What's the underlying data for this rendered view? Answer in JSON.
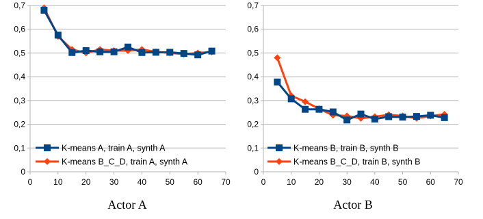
{
  "colors": {
    "kmeans": "#004586",
    "kmeans_bcd": "#ff420e",
    "grid": "#b3b3b3",
    "axis": "#b3b3b3"
  },
  "chart_data": [
    {
      "type": "line",
      "title": "",
      "caption": "Actor A",
      "xlabel": "",
      "ylabel": "",
      "xlim": [
        0,
        70
      ],
      "ylim": [
        0,
        0.7
      ],
      "xticks": [
        "0",
        "10",
        "20",
        "30",
        "40",
        "50",
        "60",
        "70"
      ],
      "yticks": [
        "0",
        "0,1",
        "0,2",
        "0,3",
        "0,4",
        "0,5",
        "0,6",
        "0,7"
      ],
      "grid": true,
      "legend_position": "bottom-left",
      "series": [
        {
          "name": "K-means A, train A, synth A",
          "color": "#004586",
          "marker": "square",
          "x": [
            5,
            10,
            15,
            20,
            25,
            30,
            35,
            40,
            45,
            50,
            55,
            60,
            65
          ],
          "y": [
            0.68,
            0.575,
            0.502,
            0.51,
            0.505,
            0.505,
            0.525,
            0.502,
            0.503,
            0.503,
            0.498,
            0.492,
            0.508
          ]
        },
        {
          "name": "K-means B_C_D, train A, synth A",
          "color": "#ff420e",
          "marker": "diamond",
          "x": [
            5,
            10,
            15,
            20,
            25,
            30,
            35,
            40,
            45,
            50,
            55,
            60,
            65
          ],
          "y": [
            0.69,
            0.57,
            0.515,
            0.5,
            0.515,
            0.51,
            0.51,
            0.515,
            0.505,
            0.5,
            0.495,
            0.5,
            0.505
          ]
        }
      ]
    },
    {
      "type": "line",
      "title": "",
      "caption": "Actor B",
      "xlabel": "",
      "ylabel": "",
      "xlim": [
        0,
        70
      ],
      "ylim": [
        0,
        0.7
      ],
      "xticks": [
        "0",
        "10",
        "20",
        "30",
        "40",
        "50",
        "60",
        "70"
      ],
      "yticks": [
        "0",
        "0,1",
        "0,2",
        "0,3",
        "0,4",
        "0,5",
        "0,6",
        "0,7"
      ],
      "grid": true,
      "legend_position": "bottom-left",
      "series": [
        {
          "name": "K-means B, train B, synth B",
          "color": "#004586",
          "marker": "square",
          "x": [
            5,
            10,
            15,
            20,
            25,
            30,
            35,
            40,
            45,
            50,
            55,
            60,
            65
          ],
          "y": [
            0.378,
            0.307,
            0.263,
            0.263,
            0.252,
            0.218,
            0.243,
            0.222,
            0.232,
            0.23,
            0.233,
            0.238,
            0.228
          ]
        },
        {
          "name": "K-means B_C_D, train B, synth B",
          "color": "#ff420e",
          "marker": "diamond",
          "x": [
            5,
            10,
            15,
            20,
            25,
            30,
            35,
            40,
            45,
            50,
            55,
            60,
            65
          ],
          "y": [
            0.48,
            0.32,
            0.295,
            0.265,
            0.238,
            0.235,
            0.225,
            0.232,
            0.24,
            0.235,
            0.225,
            0.235,
            0.242
          ]
        }
      ]
    }
  ]
}
